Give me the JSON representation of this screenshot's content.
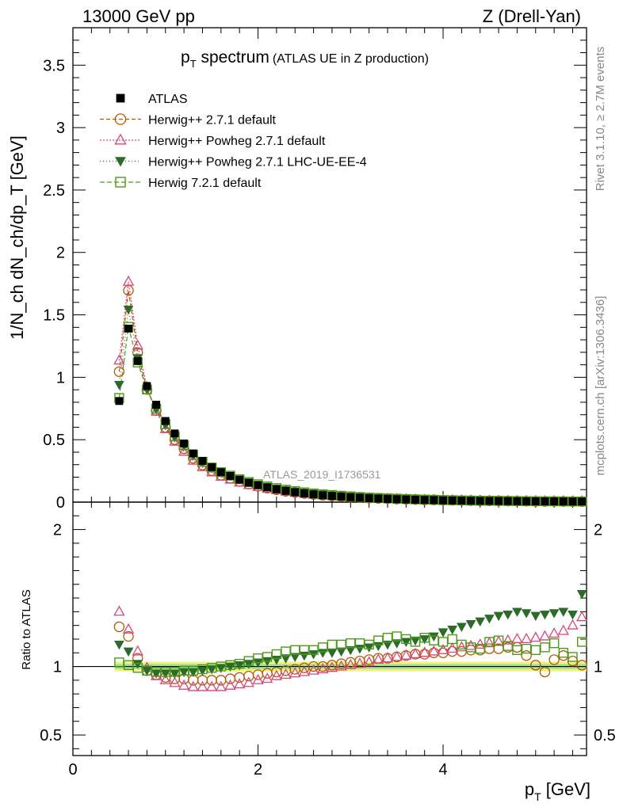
{
  "header": {
    "left": "13000 GeV pp",
    "right": "Z (Drell-Yan)"
  },
  "side_labels": {
    "rivet": "Rivet 3.1.10, ≥ 2.7M events",
    "mcplots": "mcplots.cern.ch [arXiv:1306.3436]"
  },
  "chart_data": {
    "type": "line",
    "title": "p_T spectrum (ATLAS UE in Z production)",
    "title_main": "p",
    "title_sub": "T",
    "title_rest": " spectrum",
    "title_note": "(ATLAS UE in Z production)",
    "watermark": "ATLAS_2019_I1736531",
    "xlabel": "p_T [GeV]",
    "xlabel_main": "p",
    "xlabel_sub": "T",
    "xlabel_rest": " [GeV]",
    "ylabel": "1/N_ch dN_ch/dp_T [GeV]",
    "ratio_ylabel": "Ratio to ATLAS",
    "xlim": [
      0,
      5.55
    ],
    "ylim": [
      0,
      3.8
    ],
    "ratio_ylim": [
      0.35,
      2.2
    ],
    "x_ticks": [
      "0",
      "2",
      "4"
    ],
    "y_ticks": [
      "0",
      "0.5",
      "1",
      "1.5",
      "2",
      "2.5",
      "3",
      "3.5"
    ],
    "ratio_ticks": [
      "0.5",
      "1",
      "2"
    ],
    "x": [
      0.5,
      0.6,
      0.7,
      0.8,
      0.9,
      1.0,
      1.1,
      1.2,
      1.3,
      1.4,
      1.5,
      1.6,
      1.7,
      1.8,
      1.9,
      2.0,
      2.1,
      2.2,
      2.3,
      2.4,
      2.5,
      2.6,
      2.7,
      2.8,
      2.9,
      3.0,
      3.1,
      3.2,
      3.3,
      3.4,
      3.5,
      3.6,
      3.7,
      3.8,
      3.9,
      4.0,
      4.1,
      4.2,
      4.3,
      4.4,
      4.5,
      4.6,
      4.7,
      4.8,
      4.9,
      5.0,
      5.1,
      5.2,
      5.3,
      5.4,
      5.5
    ],
    "data": {
      "name": "ATLAS",
      "values": [
        0.81,
        1.39,
        1.13,
        0.93,
        0.78,
        0.65,
        0.55,
        0.47,
        0.39,
        0.33,
        0.28,
        0.24,
        0.21,
        0.18,
        0.155,
        0.135,
        0.118,
        0.103,
        0.09,
        0.079,
        0.07,
        0.062,
        0.055,
        0.049,
        0.044,
        0.039,
        0.035,
        0.031,
        0.028,
        0.025,
        0.023,
        0.021,
        0.019,
        0.017,
        0.016,
        0.014,
        0.013,
        0.012,
        0.011,
        0.01,
        0.0095,
        0.0088,
        0.0081,
        0.0075,
        0.007,
        0.0065,
        0.006,
        0.0056,
        0.0052,
        0.0048,
        0.0045
      ]
    },
    "series": [
      {
        "name": "Herwig++ 2.7.1 default",
        "color": "#b35900",
        "marker": "circle-open",
        "dash": "5,3",
        "ratio": [
          1.29,
          1.22,
          1.06,
          0.97,
          0.94,
          0.92,
          0.91,
          0.91,
          0.9,
          0.9,
          0.9,
          0.9,
          0.91,
          0.92,
          0.93,
          0.94,
          0.95,
          0.96,
          0.97,
          0.98,
          0.99,
          1.0,
          1.0,
          1.01,
          1.02,
          1.03,
          1.04,
          1.05,
          1.06,
          1.06,
          1.07,
          1.08,
          1.09,
          1.09,
          1.1,
          1.1,
          1.11,
          1.11,
          1.12,
          1.12,
          1.13,
          1.13,
          1.14,
          1.14,
          1.08,
          1.01,
          0.96,
          1.05,
          1.08,
          1.04,
          1.01
        ]
      },
      {
        "name": "Herwig++ Powheg 2.7.1 default",
        "color": "#d6457e",
        "marker": "triangle-open",
        "dash": "2,2",
        "ratio": [
          1.4,
          1.27,
          1.11,
          0.99,
          0.93,
          0.9,
          0.88,
          0.86,
          0.85,
          0.85,
          0.85,
          0.85,
          0.86,
          0.87,
          0.88,
          0.9,
          0.91,
          0.93,
          0.94,
          0.95,
          0.96,
          0.97,
          0.98,
          0.99,
          1.0,
          1.01,
          1.02,
          1.03,
          1.05,
          1.06,
          1.07,
          1.08,
          1.09,
          1.1,
          1.11,
          1.12,
          1.13,
          1.14,
          1.15,
          1.16,
          1.17,
          1.18,
          1.19,
          1.2,
          1.2,
          1.21,
          1.22,
          1.24,
          1.26,
          1.3,
          1.36
        ]
      },
      {
        "name": "Herwig++ Powheg 2.7.1 LHC-UE-EE-4",
        "color": "#2d6b2a",
        "marker": "triangle-down-filled",
        "dash": "1,3",
        "ratio": [
          1.16,
          1.11,
          1.02,
          0.97,
          0.95,
          0.95,
          0.95,
          0.96,
          0.96,
          0.97,
          0.98,
          0.99,
          1.0,
          1.01,
          1.02,
          1.03,
          1.04,
          1.05,
          1.06,
          1.07,
          1.08,
          1.09,
          1.1,
          1.1,
          1.11,
          1.12,
          1.13,
          1.14,
          1.15,
          1.16,
          1.17,
          1.18,
          1.19,
          1.2,
          1.22,
          1.25,
          1.27,
          1.29,
          1.31,
          1.33,
          1.35,
          1.37,
          1.38,
          1.4,
          1.39,
          1.37,
          1.38,
          1.39,
          1.4,
          1.38,
          1.53
        ]
      },
      {
        "name": "Herwig 7.2.1 default",
        "color": "#4c9a1a",
        "marker": "square-open",
        "dash": "6,3",
        "ratio": [
          1.03,
          1.01,
          0.99,
          0.97,
          0.96,
          0.96,
          0.96,
          0.97,
          0.97,
          0.98,
          0.99,
          1.0,
          1.01,
          1.02,
          1.04,
          1.06,
          1.07,
          1.09,
          1.11,
          1.12,
          1.12,
          1.12,
          1.14,
          1.16,
          1.16,
          1.17,
          1.17,
          1.16,
          1.19,
          1.21,
          1.22,
          1.2,
          1.18,
          1.21,
          1.19,
          1.18,
          1.2,
          1.16,
          1.14,
          1.13,
          1.18,
          1.19,
          1.15,
          1.12,
          1.13,
          1.12,
          1.14,
          1.17,
          1.1,
          1.07,
          1.18
        ]
      }
    ],
    "grid": false,
    "legend_position": "top-left"
  }
}
